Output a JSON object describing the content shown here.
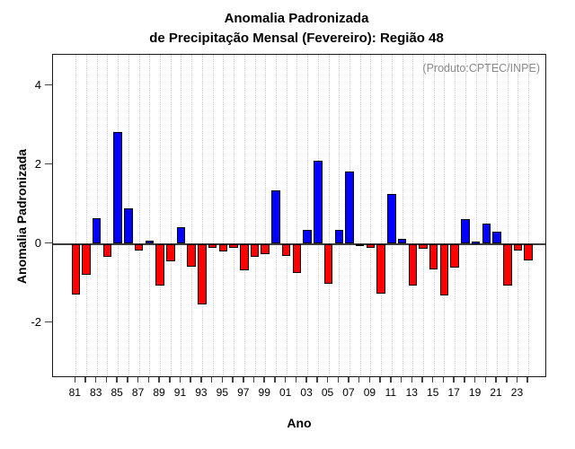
{
  "title": {
    "line1": "Anomalia Padronizada",
    "line2": "de Precipitação Mensal (Fevereiro): Região 48"
  },
  "annotation": "(Produto:CPTEC/INPE)",
  "axes": {
    "y_label": "Anomalia Padronizada",
    "x_label": "Ano"
  },
  "colors": {
    "positive_bar": "#0000ff",
    "negative_bar": "#ff0000",
    "bar_border": "#000000",
    "gridline": "#cfcfcf",
    "zero_line": "#3c3c3c",
    "annotation_text": "#8a8a8a"
  },
  "chart_data": {
    "type": "bar",
    "title": "Anomalia Padronizada de Precipitação Mensal (Fevereiro): Região 48",
    "xlabel": "Ano",
    "ylabel": "Anomalia Padronizada",
    "annotation": "(Produto:CPTEC/INPE)",
    "ylim": [
      -3.4,
      4.8
    ],
    "yticks": [
      4,
      2,
      0,
      -2
    ],
    "grid": "vertical-dotted-per-year",
    "legend": "none",
    "x_labels_every": 2,
    "categories": [
      "81",
      "82",
      "83",
      "84",
      "85",
      "86",
      "87",
      "88",
      "89",
      "90",
      "91",
      "92",
      "93",
      "94",
      "95",
      "96",
      "97",
      "98",
      "99",
      "00",
      "01",
      "02",
      "03",
      "04",
      "05",
      "06",
      "07",
      "08",
      "09",
      "10",
      "11",
      "12",
      "13",
      "14",
      "15",
      "16",
      "17",
      "18",
      "19",
      "20",
      "21",
      "22",
      "23",
      "24"
    ],
    "values": [
      -1.28,
      -0.78,
      0.64,
      -0.34,
      2.82,
      0.9,
      -0.17,
      0.07,
      -1.05,
      -0.45,
      0.42,
      -0.58,
      -1.53,
      -0.1,
      -0.19,
      -0.1,
      -0.68,
      -0.34,
      -0.26,
      1.36,
      -0.31,
      -0.74,
      0.35,
      2.1,
      -1.02,
      0.35,
      1.84,
      -0.05,
      -0.11,
      -1.25,
      1.27,
      0.12,
      -1.06,
      -0.12,
      -0.64,
      -1.3,
      -0.6,
      0.62,
      0.04,
      0.52,
      0.3,
      -1.05,
      -0.18,
      -0.41
    ]
  }
}
